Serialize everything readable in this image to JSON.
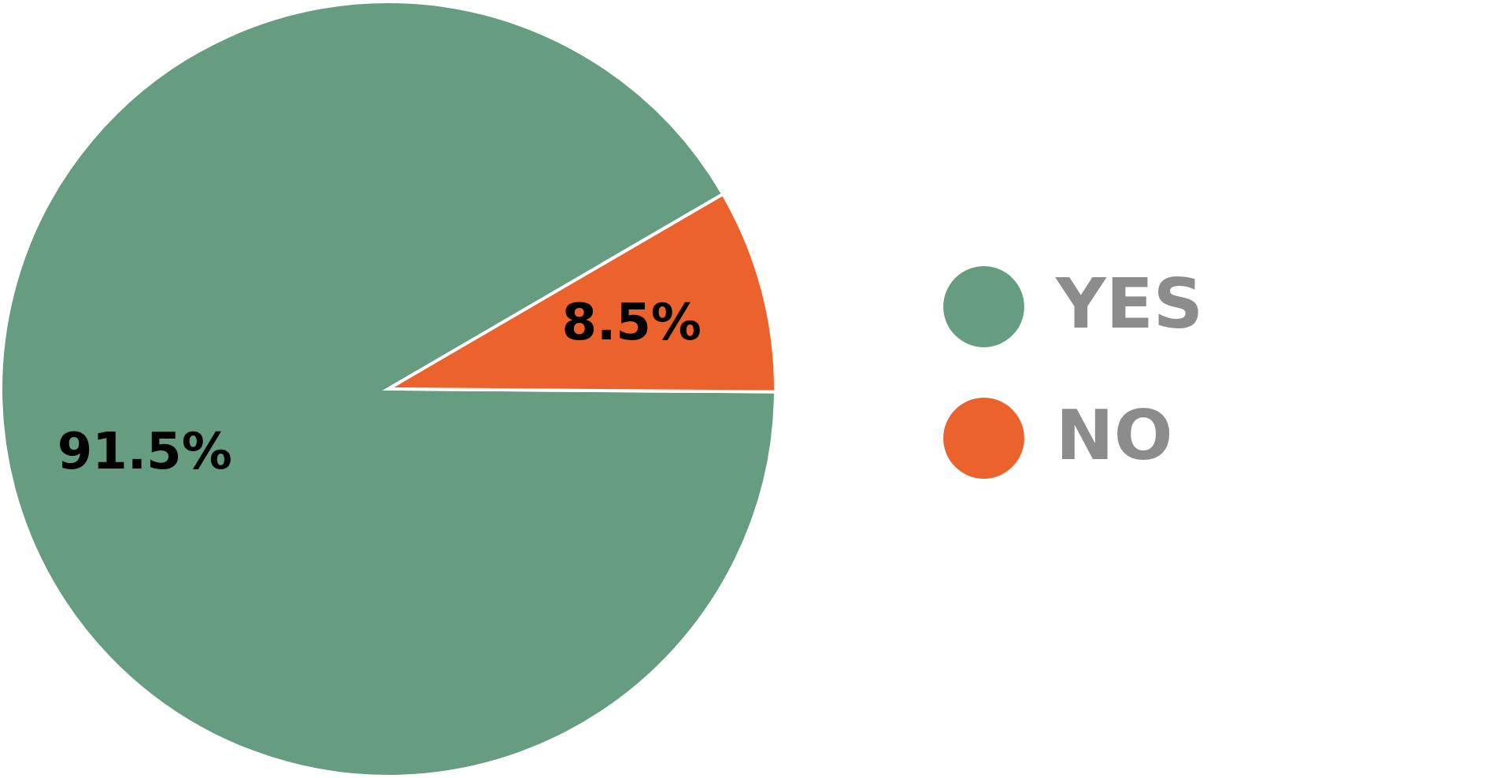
{
  "chart_data": {
    "type": "pie",
    "categories": [
      "YES",
      "NO"
    ],
    "values": [
      91.5,
      8.5
    ],
    "colors": [
      "#669c80",
      "#eb622c"
    ],
    "value_labels": [
      "91.5%",
      "8.5%"
    ],
    "legend": "right"
  }
}
